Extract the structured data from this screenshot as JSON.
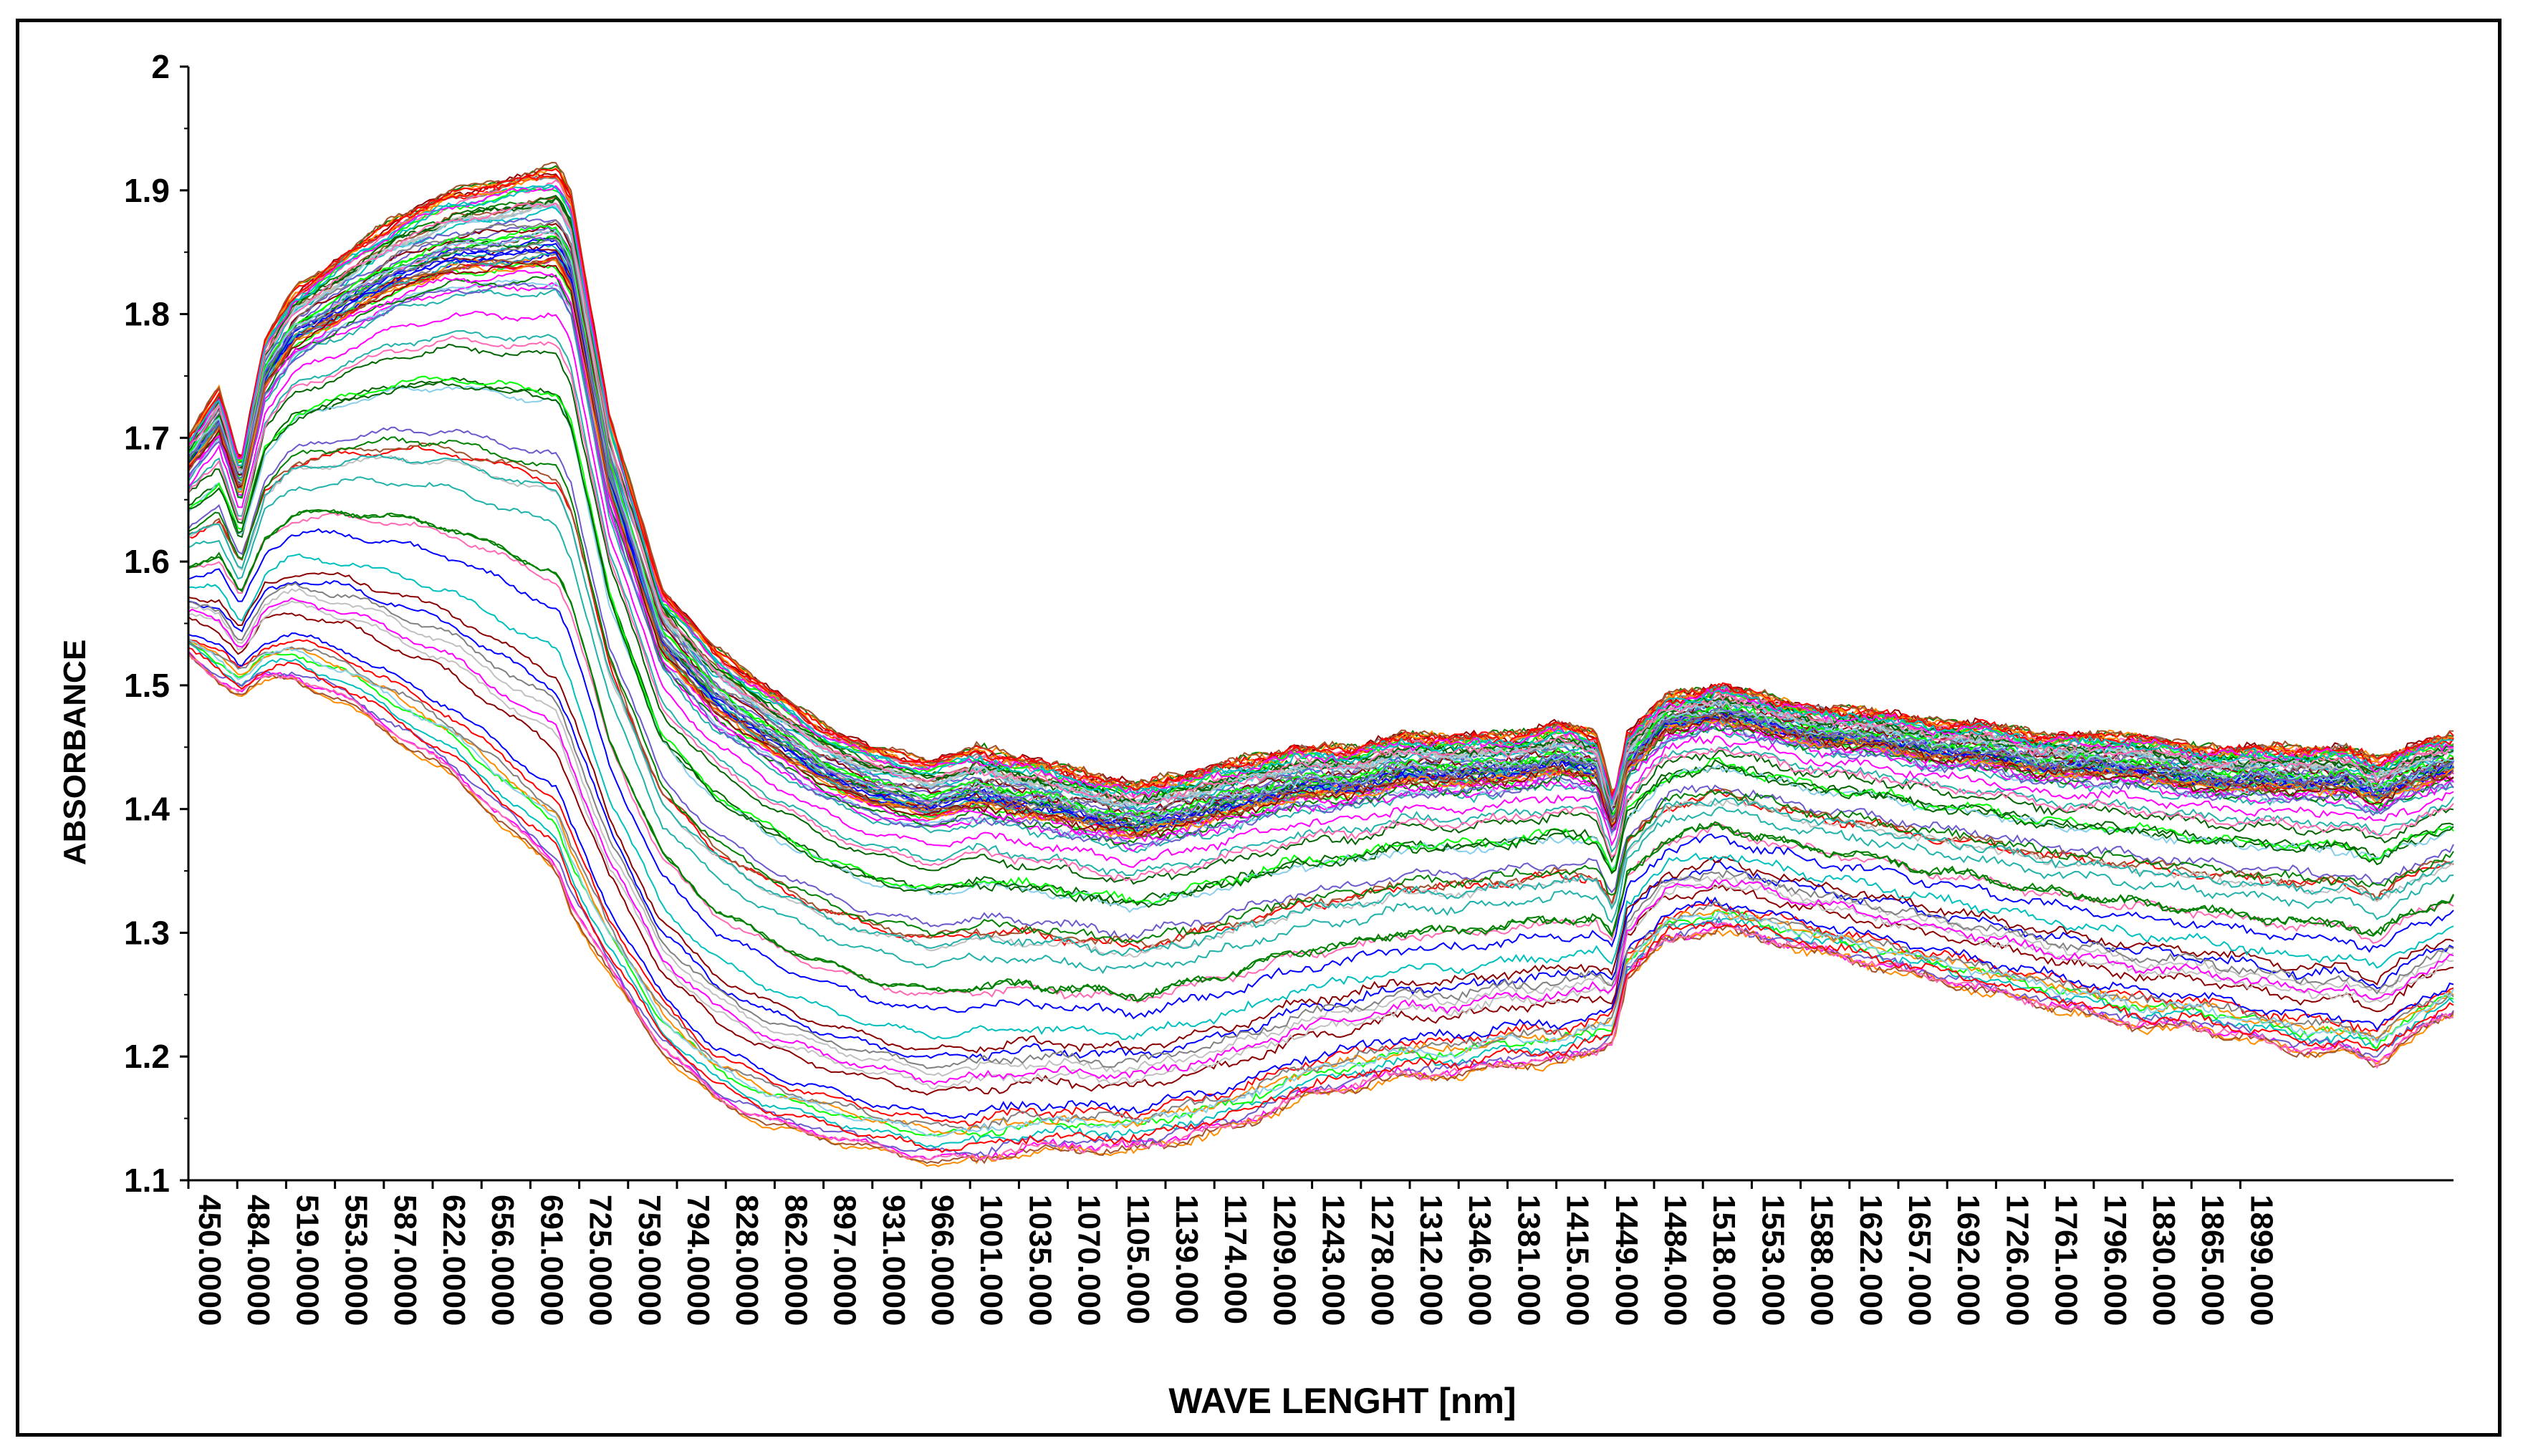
{
  "chart_data": {
    "type": "line",
    "title": "",
    "xlabel": "WAVE LENGHT [nm]",
    "ylabel": "ABSORBANCE",
    "xlim": [
      450,
      1930
    ],
    "ylim": [
      1.1,
      2.0
    ],
    "grid": false,
    "legend": "none",
    "y_ticks": [
      "1.1",
      "1.2",
      "1.3",
      "1.4",
      "1.5",
      "1.6",
      "1.7",
      "1.8",
      "1.9",
      "2"
    ],
    "x_tick_labels": [
      "450.0000",
      "484.0000",
      "519.0000",
      "553.0000",
      "587.0000",
      "622.0000",
      "656.0000",
      "691.0000",
      "725.0000",
      "759.0000",
      "794.0000",
      "828.0000",
      "862.0000",
      "897.0000",
      "931.0000",
      "966.0000",
      "1001.000",
      "1035.000",
      "1070.000",
      "1105.000",
      "1139.000",
      "1174.000",
      "1209.000",
      "1243.000",
      "1278.000",
      "1312.000",
      "1346.000",
      "1381.000",
      "1415.000",
      "1449.000",
      "1484.000",
      "1518.000",
      "1553.000",
      "1588.000",
      "1622.000",
      "1657.000",
      "1692.000",
      "1726.000",
      "1761.000",
      "1796.000",
      "1830.000",
      "1865.000",
      "1899.000"
    ],
    "series_colors": [
      "#ff0000",
      "#0000ff",
      "#008000",
      "#ff00ff",
      "#00bfbf",
      "#ff8c00",
      "#8b0000",
      "#00ff00",
      "#808080",
      "#87ceeb",
      "#6a5acd",
      "#a0522d",
      "#20b2aa",
      "#c0c0c0",
      "#006400",
      "#ff69b4"
    ],
    "series_count": 100,
    "series_note": "Each series is one absorbance spectrum; per-series levels spread between the low and high envelopes below.",
    "envelope_x": [
      450,
      470,
      484,
      500,
      519,
      553,
      587,
      622,
      656,
      691,
      700,
      725,
      759,
      794,
      828,
      862,
      897,
      935,
      966,
      1001,
      1035,
      1070,
      1105,
      1139,
      1174,
      1209,
      1243,
      1278,
      1312,
      1346,
      1370,
      1381,
      1390,
      1415,
      1449,
      1484,
      1518,
      1553,
      1588,
      1622,
      1657,
      1692,
      1726,
      1761,
      1796,
      1830,
      1860,
      1880,
      1899,
      1930
    ],
    "envelope_high": [
      1.7,
      1.74,
      1.68,
      1.78,
      1.82,
      1.85,
      1.88,
      1.9,
      1.91,
      1.92,
      1.9,
      1.72,
      1.58,
      1.53,
      1.5,
      1.47,
      1.45,
      1.44,
      1.45,
      1.44,
      1.43,
      1.42,
      1.43,
      1.44,
      1.45,
      1.45,
      1.46,
      1.46,
      1.46,
      1.47,
      1.46,
      1.41,
      1.46,
      1.49,
      1.5,
      1.49,
      1.48,
      1.48,
      1.47,
      1.47,
      1.46,
      1.46,
      1.46,
      1.45,
      1.45,
      1.45,
      1.45,
      1.44,
      1.45,
      1.46
    ],
    "envelope_low": [
      1.52,
      1.5,
      1.49,
      1.5,
      1.5,
      1.48,
      1.45,
      1.42,
      1.38,
      1.34,
      1.31,
      1.26,
      1.2,
      1.16,
      1.14,
      1.13,
      1.12,
      1.11,
      1.11,
      1.12,
      1.12,
      1.12,
      1.13,
      1.14,
      1.16,
      1.17,
      1.18,
      1.18,
      1.19,
      1.19,
      1.2,
      1.21,
      1.26,
      1.29,
      1.3,
      1.29,
      1.28,
      1.27,
      1.26,
      1.25,
      1.24,
      1.23,
      1.22,
      1.22,
      1.21,
      1.2,
      1.2,
      1.19,
      1.21,
      1.23
    ]
  }
}
